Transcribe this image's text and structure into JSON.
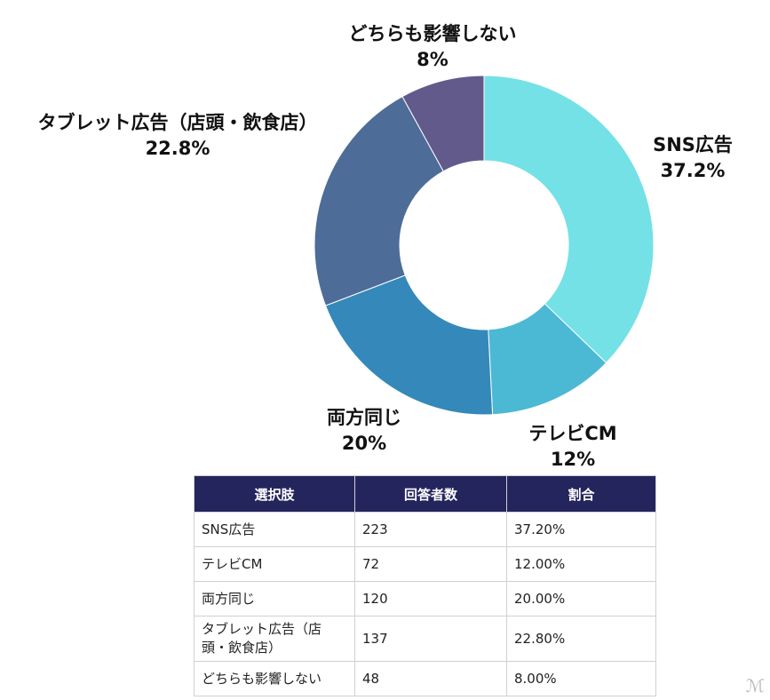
{
  "chart_data": {
    "type": "pie",
    "donut": true,
    "categories": [
      "SNS広告",
      "テレビCM",
      "両方同じ",
      "タブレット広告（店頭・飲食店）",
      "どちらも影響しない"
    ],
    "values": [
      37.2,
      12,
      20,
      22.8,
      8
    ],
    "value_labels": [
      "37.2%",
      "12%",
      "20%",
      "22.8%",
      "8%"
    ],
    "colors": [
      "#74e1e6",
      "#4bb8d4",
      "#3588ba",
      "#4e6c98",
      "#625a8b"
    ]
  },
  "table": {
    "headers": [
      "選択肢",
      "回答者数",
      "割合"
    ],
    "rows": [
      [
        "SNS広告",
        "223",
        "37.20%"
      ],
      [
        "テレビCM",
        "72",
        "12.00%"
      ],
      [
        "両方同じ",
        "120",
        "20.00%"
      ],
      [
        "タブレット広告（店頭・飲食店）",
        "137",
        "22.80%"
      ],
      [
        "どちらも影響しない",
        "48",
        "8.00%"
      ]
    ],
    "header_color": "#25255e"
  }
}
